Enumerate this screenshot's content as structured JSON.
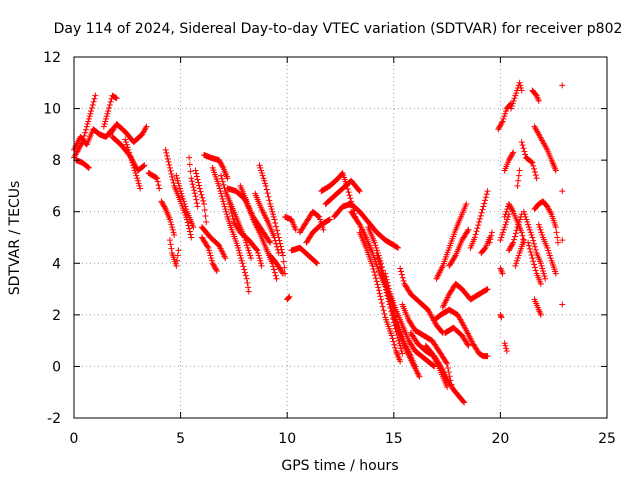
{
  "chart_data": {
    "type": "scatter",
    "title": "Day 114 of 2024, Sidereal Day-to-day VTEC variation (SDTVAR) for receiver p802",
    "xlabel": "GPS time / hours",
    "ylabel": "SDTVAR / TECUs",
    "xlim": [
      0,
      25
    ],
    "ylim": [
      -2,
      12
    ],
    "xticks": [
      0,
      5,
      10,
      15,
      20,
      25
    ],
    "yticks": [
      -2,
      0,
      2,
      4,
      6,
      8,
      10,
      12
    ],
    "xtick_labels": [
      "0",
      "5",
      "10",
      "15",
      "20",
      "25"
    ],
    "ytick_labels": [
      "-2",
      "0",
      "2",
      "4",
      "6",
      "8",
      "10",
      "12"
    ],
    "grid": true,
    "marker": "+",
    "series_color": "#ff0000",
    "tracks": [
      [
        [
          0.0,
          8.1
        ],
        [
          0.2,
          8.4
        ],
        [
          0.4,
          8.7
        ],
        [
          0.6,
          9.3
        ],
        [
          0.8,
          9.9
        ],
        [
          1.0,
          10.5
        ]
      ],
      [
        [
          0.0,
          8.4
        ],
        [
          0.3,
          8.9
        ],
        [
          0.6,
          8.6
        ],
        [
          0.9,
          9.2
        ],
        [
          1.2,
          9.0
        ],
        [
          1.5,
          8.9
        ],
        [
          1.8,
          9.2
        ]
      ],
      [
        [
          0.1,
          8.0
        ],
        [
          0.4,
          7.9
        ],
        [
          0.7,
          7.7
        ]
      ],
      [
        [
          1.4,
          9.3
        ],
        [
          1.6,
          9.9
        ],
        [
          1.8,
          10.5
        ],
        [
          2.0,
          10.4
        ]
      ],
      [
        [
          1.7,
          9.0
        ],
        [
          2.0,
          9.4
        ],
        [
          2.4,
          9.1
        ],
        [
          2.8,
          8.7
        ],
        [
          3.2,
          9.0
        ],
        [
          3.4,
          9.3
        ]
      ],
      [
        [
          1.8,
          8.9
        ],
        [
          2.2,
          8.6
        ],
        [
          2.6,
          8.2
        ],
        [
          3.0,
          7.6
        ],
        [
          3.3,
          7.8
        ]
      ],
      [
        [
          2.4,
          8.8
        ],
        [
          2.7,
          8.0
        ],
        [
          3.0,
          7.2
        ],
        [
          3.1,
          6.9
        ]
      ],
      [
        [
          3.5,
          7.5
        ],
        [
          3.9,
          7.3
        ],
        [
          4.0,
          6.9
        ]
      ],
      [
        [
          4.1,
          6.4
        ],
        [
          4.3,
          6.1
        ],
        [
          4.5,
          5.7
        ],
        [
          4.7,
          5.1
        ]
      ],
      [
        [
          4.5,
          4.9
        ],
        [
          4.6,
          4.4
        ],
        [
          4.8,
          3.9
        ],
        [
          4.9,
          4.5
        ]
      ],
      [
        [
          4.3,
          8.4
        ],
        [
          4.5,
          7.7
        ],
        [
          4.7,
          7.0
        ],
        [
          5.0,
          6.4
        ],
        [
          5.3,
          5.7
        ],
        [
          5.5,
          5.0
        ]
      ],
      [
        [
          4.8,
          7.4
        ],
        [
          5.0,
          6.8
        ],
        [
          5.3,
          6.0
        ],
        [
          5.6,
          5.4
        ]
      ],
      [
        [
          5.4,
          8.1
        ],
        [
          5.5,
          7.3
        ],
        [
          5.7,
          6.6
        ],
        [
          5.8,
          6.2
        ]
      ],
      [
        [
          5.7,
          7.6
        ],
        [
          5.9,
          6.9
        ],
        [
          6.1,
          6.3
        ],
        [
          6.2,
          5.6
        ]
      ],
      [
        [
          6.0,
          5.0
        ],
        [
          6.3,
          4.6
        ],
        [
          6.5,
          4.0
        ],
        [
          6.7,
          3.7
        ]
      ],
      [
        [
          6.0,
          5.4
        ],
        [
          6.4,
          5.0
        ],
        [
          6.8,
          4.7
        ],
        [
          7.1,
          4.2
        ]
      ],
      [
        [
          6.1,
          8.2
        ],
        [
          6.4,
          8.1
        ],
        [
          6.8,
          8.0
        ],
        [
          7.0,
          7.7
        ],
        [
          7.2,
          7.3
        ]
      ],
      [
        [
          6.5,
          7.7
        ],
        [
          6.8,
          7.0
        ],
        [
          7.0,
          6.4
        ],
        [
          7.2,
          5.8
        ],
        [
          7.4,
          5.3
        ],
        [
          7.7,
          4.6
        ],
        [
          7.9,
          4.0
        ],
        [
          8.1,
          3.4
        ],
        [
          8.2,
          2.9
        ]
      ],
      [
        [
          6.9,
          7.4
        ],
        [
          7.1,
          6.8
        ],
        [
          7.4,
          6.2
        ],
        [
          7.7,
          5.6
        ],
        [
          8.0,
          5.0
        ],
        [
          8.3,
          4.2
        ]
      ],
      [
        [
          7.2,
          6.9
        ],
        [
          7.6,
          6.8
        ],
        [
          8.0,
          6.5
        ],
        [
          8.4,
          5.8
        ],
        [
          8.8,
          5.3
        ],
        [
          9.2,
          4.8
        ]
      ],
      [
        [
          7.3,
          6.3
        ],
        [
          7.5,
          5.6
        ],
        [
          7.8,
          5.2
        ],
        [
          8.2,
          4.9
        ],
        [
          8.6,
          4.5
        ],
        [
          8.8,
          3.9
        ]
      ],
      [
        [
          7.8,
          7.0
        ],
        [
          8.1,
          6.4
        ],
        [
          8.4,
          5.7
        ],
        [
          8.7,
          5.2
        ],
        [
          9.0,
          4.6
        ],
        [
          9.3,
          4.0
        ],
        [
          9.5,
          3.4
        ]
      ],
      [
        [
          8.5,
          6.7
        ],
        [
          8.8,
          6.1
        ],
        [
          9.1,
          5.6
        ],
        [
          9.4,
          5.0
        ],
        [
          9.6,
          4.4
        ]
      ],
      [
        [
          8.7,
          7.8
        ],
        [
          9.0,
          7.0
        ],
        [
          9.2,
          6.3
        ],
        [
          9.4,
          5.7
        ],
        [
          9.6,
          5.0
        ],
        [
          9.8,
          4.3
        ],
        [
          9.9,
          3.6
        ]
      ],
      [
        [
          9.2,
          4.3
        ],
        [
          9.5,
          4.0
        ],
        [
          9.8,
          3.6
        ]
      ],
      [
        [
          10.0,
          2.6
        ],
        [
          10.1,
          2.7
        ]
      ],
      [
        [
          9.9,
          5.8
        ],
        [
          10.2,
          5.7
        ],
        [
          10.4,
          5.3
        ]
      ],
      [
        [
          10.2,
          4.5
        ],
        [
          10.6,
          4.6
        ],
        [
          11.0,
          4.3
        ],
        [
          11.4,
          4.0
        ]
      ],
      [
        [
          10.6,
          5.2
        ],
        [
          10.9,
          5.6
        ],
        [
          11.2,
          6.0
        ],
        [
          11.5,
          5.8
        ],
        [
          11.7,
          5.3
        ]
      ],
      [
        [
          10.9,
          4.8
        ],
        [
          11.2,
          5.2
        ],
        [
          11.6,
          5.5
        ],
        [
          12.0,
          5.7
        ]
      ],
      [
        [
          11.6,
          6.8
        ],
        [
          12.0,
          7.0
        ],
        [
          12.4,
          7.3
        ],
        [
          12.6,
          7.5
        ],
        [
          12.8,
          7.0
        ],
        [
          13.0,
          6.4
        ],
        [
          13.2,
          5.8
        ]
      ],
      [
        [
          11.8,
          6.3
        ],
        [
          12.2,
          6.6
        ],
        [
          12.6,
          6.9
        ],
        [
          13.0,
          7.2
        ],
        [
          13.4,
          6.8
        ]
      ],
      [
        [
          12.2,
          5.8
        ],
        [
          12.6,
          6.2
        ],
        [
          13.0,
          6.3
        ],
        [
          13.4,
          6.0
        ],
        [
          13.8,
          5.6
        ],
        [
          14.2,
          5.2
        ],
        [
          14.6,
          4.9
        ],
        [
          15.0,
          4.7
        ],
        [
          15.2,
          4.6
        ]
      ],
      [
        [
          13.0,
          6.0
        ],
        [
          13.4,
          5.5
        ],
        [
          13.7,
          5.0
        ],
        [
          14.0,
          4.4
        ],
        [
          14.3,
          3.7
        ],
        [
          14.6,
          3.1
        ],
        [
          14.8,
          2.4
        ],
        [
          15.0,
          1.7
        ],
        [
          15.2,
          1.1
        ],
        [
          15.4,
          0.5
        ]
      ],
      [
        [
          13.4,
          5.2
        ],
        [
          13.7,
          4.6
        ],
        [
          14.0,
          3.9
        ],
        [
          14.2,
          3.3
        ],
        [
          14.4,
          2.6
        ],
        [
          14.6,
          1.9
        ],
        [
          14.9,
          1.2
        ],
        [
          15.1,
          0.6
        ],
        [
          15.3,
          0.2
        ]
      ],
      [
        [
          13.8,
          5.4
        ],
        [
          14.1,
          4.8
        ],
        [
          14.4,
          4.0
        ],
        [
          14.6,
          3.3
        ],
        [
          14.9,
          2.5
        ],
        [
          15.2,
          1.6
        ],
        [
          15.5,
          0.9
        ],
        [
          15.8,
          0.4
        ],
        [
          16.0,
          0.0
        ]
      ],
      [
        [
          14.2,
          4.4
        ],
        [
          14.5,
          3.5
        ],
        [
          14.8,
          2.6
        ],
        [
          15.0,
          1.9
        ],
        [
          15.3,
          1.2
        ],
        [
          15.6,
          0.6
        ],
        [
          15.9,
          0.1
        ],
        [
          16.2,
          -0.4
        ]
      ],
      [
        [
          14.6,
          3.6
        ],
        [
          14.8,
          2.9
        ],
        [
          15.1,
          2.2
        ],
        [
          15.4,
          1.6
        ],
        [
          15.7,
          1.0
        ],
        [
          16.0,
          0.6
        ],
        [
          16.3,
          0.4
        ],
        [
          16.6,
          0.2
        ],
        [
          16.9,
          0.0
        ]
      ],
      [
        [
          15.3,
          3.8
        ],
        [
          15.5,
          3.2
        ],
        [
          15.8,
          2.8
        ],
        [
          16.2,
          2.5
        ],
        [
          16.6,
          2.2
        ],
        [
          17.0,
          1.6
        ],
        [
          17.3,
          1.3
        ]
      ],
      [
        [
          15.4,
          2.4
        ],
        [
          15.7,
          1.8
        ],
        [
          16.0,
          1.4
        ],
        [
          16.4,
          1.2
        ],
        [
          16.8,
          1.0
        ],
        [
          17.2,
          0.5
        ],
        [
          17.5,
          0.1
        ],
        [
          17.7,
          -0.7
        ]
      ],
      [
        [
          15.8,
          1.3
        ],
        [
          16.1,
          0.9
        ],
        [
          16.5,
          0.6
        ],
        [
          16.9,
          0.4
        ],
        [
          17.2,
          0.0
        ],
        [
          17.5,
          -0.5
        ],
        [
          17.8,
          -0.9
        ],
        [
          18.1,
          -1.2
        ],
        [
          18.3,
          -1.4
        ]
      ],
      [
        [
          16.5,
          0.8
        ],
        [
          16.8,
          0.5
        ],
        [
          17.1,
          0.0
        ],
        [
          17.3,
          -0.4
        ],
        [
          17.5,
          -0.8
        ]
      ],
      [
        [
          16.9,
          1.8
        ],
        [
          17.2,
          2.0
        ],
        [
          17.6,
          2.2
        ],
        [
          18.0,
          2.0
        ],
        [
          18.4,
          1.4
        ],
        [
          18.7,
          0.9
        ],
        [
          19.0,
          0.5
        ],
        [
          19.2,
          0.4
        ],
        [
          19.4,
          0.4
        ]
      ],
      [
        [
          17.3,
          2.3
        ],
        [
          17.6,
          2.8
        ],
        [
          17.9,
          3.2
        ],
        [
          18.2,
          3.0
        ],
        [
          18.6,
          2.6
        ],
        [
          19.0,
          2.8
        ],
        [
          19.4,
          3.0
        ]
      ],
      [
        [
          17.4,
          1.3
        ],
        [
          17.8,
          1.5
        ],
        [
          18.2,
          1.2
        ],
        [
          18.5,
          0.8
        ]
      ],
      [
        [
          17.0,
          3.4
        ],
        [
          17.3,
          3.9
        ],
        [
          17.6,
          4.6
        ],
        [
          17.9,
          5.3
        ],
        [
          18.2,
          5.9
        ],
        [
          18.4,
          6.3
        ]
      ],
      [
        [
          17.6,
          3.9
        ],
        [
          17.9,
          4.3
        ],
        [
          18.2,
          4.9
        ],
        [
          18.5,
          5.3
        ]
      ],
      [
        [
          18.6,
          4.6
        ],
        [
          18.8,
          5.0
        ],
        [
          19.0,
          5.6
        ],
        [
          19.2,
          6.2
        ],
        [
          19.4,
          6.8
        ]
      ],
      [
        [
          19.1,
          4.4
        ],
        [
          19.3,
          4.6
        ],
        [
          19.5,
          5.0
        ]
      ],
      [
        [
          19.5,
          4.8
        ],
        [
          19.6,
          5.2
        ]
      ],
      [
        [
          19.9,
          9.2
        ],
        [
          20.1,
          9.5
        ],
        [
          20.3,
          10.0
        ],
        [
          20.5,
          10.2
        ]
      ],
      [
        [
          20.5,
          10.0
        ],
        [
          20.7,
          10.5
        ],
        [
          20.9,
          11.0
        ],
        [
          21.0,
          10.7
        ]
      ],
      [
        [
          20.2,
          7.6
        ],
        [
          20.4,
          8.0
        ],
        [
          20.6,
          8.3
        ]
      ],
      [
        [
          20.0,
          4.9
        ],
        [
          20.2,
          5.4
        ],
        [
          20.4,
          5.9
        ]
      ],
      [
        [
          20.2,
          5.8
        ],
        [
          20.4,
          6.3
        ],
        [
          20.6,
          6.0
        ],
        [
          20.8,
          5.6
        ],
        [
          21.0,
          5.2
        ],
        [
          21.1,
          4.8
        ]
      ],
      [
        [
          20.4,
          4.5
        ],
        [
          20.6,
          4.8
        ],
        [
          20.8,
          5.4
        ],
        [
          21.0,
          5.9
        ]
      ],
      [
        [
          20.0,
          3.8
        ],
        [
          20.1,
          3.6
        ]
      ],
      [
        [
          20.0,
          2.0
        ],
        [
          20.05,
          1.9
        ]
      ],
      [
        [
          20.2,
          0.9
        ],
        [
          20.3,
          0.6
        ]
      ],
      [
        [
          20.7,
          3.9
        ],
        [
          20.9,
          4.4
        ],
        [
          21.1,
          4.9
        ]
      ],
      [
        [
          20.8,
          7.0
        ],
        [
          20.9,
          7.6
        ]
      ],
      [
        [
          21.0,
          8.7
        ],
        [
          21.2,
          8.1
        ],
        [
          21.5,
          7.9
        ],
        [
          21.7,
          7.3
        ]
      ],
      [
        [
          21.1,
          6.0
        ],
        [
          21.3,
          5.5
        ],
        [
          21.5,
          5.0
        ],
        [
          21.7,
          4.4
        ],
        [
          21.9,
          4.0
        ],
        [
          22.1,
          3.4
        ]
      ],
      [
        [
          21.3,
          4.8
        ],
        [
          21.5,
          4.2
        ],
        [
          21.7,
          3.6
        ],
        [
          21.9,
          3.2
        ]
      ],
      [
        [
          21.5,
          10.7
        ],
        [
          21.7,
          10.5
        ],
        [
          21.8,
          10.3
        ]
      ],
      [
        [
          21.6,
          9.3
        ],
        [
          21.8,
          9.0
        ],
        [
          22.0,
          8.7
        ],
        [
          22.2,
          8.4
        ],
        [
          22.4,
          8.0
        ],
        [
          22.6,
          7.6
        ]
      ],
      [
        [
          21.6,
          6.1
        ],
        [
          21.8,
          6.3
        ],
        [
          22.0,
          6.4
        ],
        [
          22.2,
          6.2
        ],
        [
          22.4,
          5.9
        ],
        [
          22.6,
          5.4
        ],
        [
          22.7,
          4.8
        ]
      ],
      [
        [
          21.8,
          5.5
        ],
        [
          22.0,
          5.0
        ],
        [
          22.2,
          4.6
        ],
        [
          22.4,
          4.1
        ],
        [
          22.6,
          3.6
        ]
      ],
      [
        [
          21.6,
          2.6
        ],
        [
          21.8,
          2.2
        ],
        [
          21.9,
          2.0
        ]
      ],
      [
        [
          22.9,
          10.9
        ]
      ],
      [
        [
          22.9,
          6.8
        ]
      ],
      [
        [
          22.9,
          4.9
        ]
      ],
      [
        [
          22.9,
          2.4
        ]
      ]
    ]
  }
}
